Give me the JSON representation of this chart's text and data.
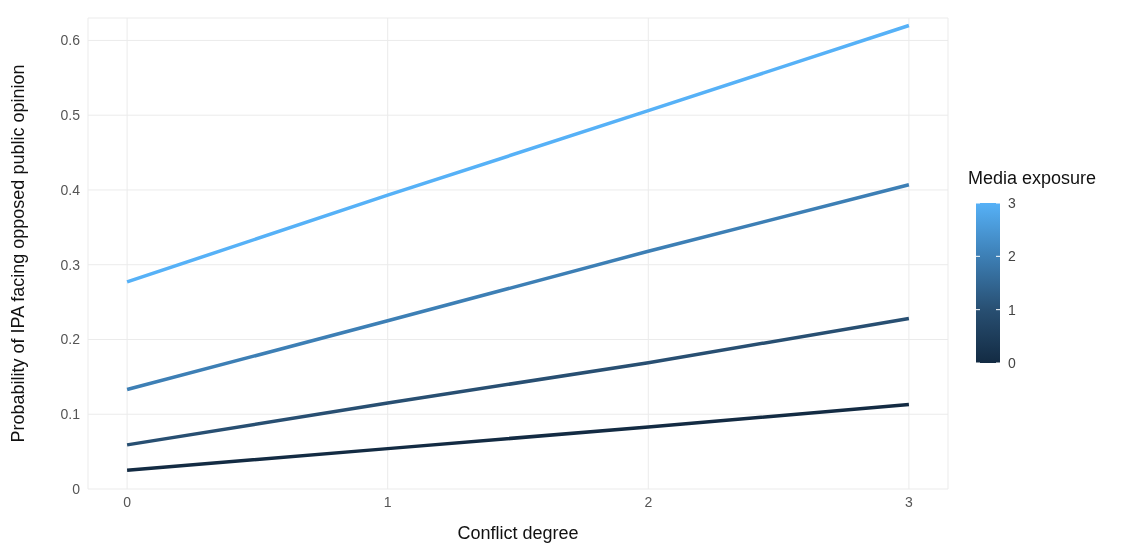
{
  "chart_data": {
    "type": "line",
    "xlabel": "Conflict degree",
    "ylabel": "Probability of IPA facing opposed public opinion",
    "clabel": "Media exposure",
    "clim": [
      0,
      3
    ],
    "cticks": [
      0,
      1,
      2,
      3
    ],
    "x": [
      0,
      1,
      2,
      3
    ],
    "series": [
      {
        "color": "#132b43",
        "values": [
          0.025,
          0.054,
          0.083,
          0.113
        ]
      },
      {
        "color": "#284f72",
        "values": [
          0.059,
          0.115,
          0.169,
          0.228
        ]
      },
      {
        "color": "#3d7fb5",
        "values": [
          0.133,
          0.225,
          0.318,
          0.407
        ]
      },
      {
        "color": "#56b1f7",
        "values": [
          0.277,
          0.393,
          0.506,
          0.62
        ]
      }
    ],
    "xlim": [
      -0.15,
      3.15
    ],
    "xticks": [
      0,
      1,
      2,
      3
    ],
    "ylim": [
      0,
      0.63
    ],
    "yticks": [
      0,
      0.1,
      0.2,
      0.3,
      0.4,
      0.5,
      0.6
    ],
    "grid": true,
    "marker": "none",
    "line_style": "solid"
  }
}
